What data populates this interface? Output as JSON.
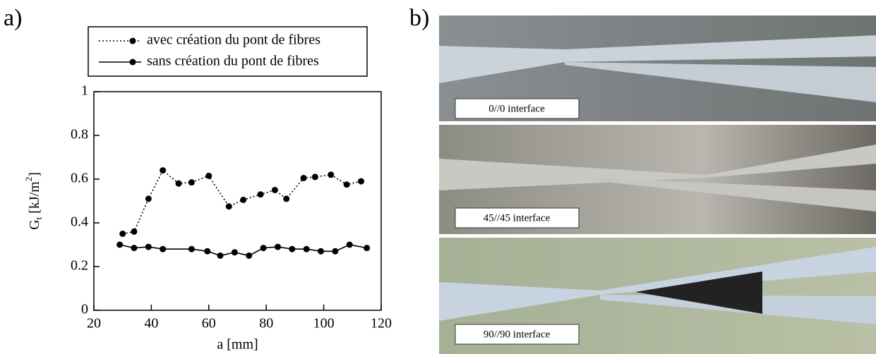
{
  "panel_labels": [
    "a)",
    "b)"
  ],
  "chart_data": {
    "type": "line",
    "xlabel": "a [mm]",
    "ylabel": [
      "G",
      "t",
      " [kJ/m",
      "2",
      "]"
    ],
    "xlim": [
      20,
      120
    ],
    "xticks": [
      20,
      40,
      60,
      80,
      100,
      120
    ],
    "ylim": [
      0,
      1
    ],
    "yticks": [
      0,
      0.2,
      0.4,
      0.6,
      0.8,
      1
    ],
    "series": [
      {
        "name": "avec création du pont de fibres",
        "color": "#000000",
        "line_style": "dotted",
        "x": [
          30,
          34,
          39,
          44,
          49.5,
          54,
          60,
          67,
          72,
          78,
          83,
          87,
          93,
          97,
          102.5,
          108,
          113
        ],
        "values": [
          0.35,
          0.36,
          0.51,
          0.64,
          0.58,
          0.585,
          0.615,
          0.475,
          0.505,
          0.53,
          0.55,
          0.51,
          0.605,
          0.61,
          0.62,
          0.575,
          0.59
        ]
      },
      {
        "name": "sans création du pont de fibres",
        "color": "#000000",
        "line_style": "solid",
        "x": [
          29,
          34,
          39,
          44,
          54,
          59.5,
          64,
          69,
          74,
          79,
          84,
          89,
          94,
          99,
          104,
          109,
          115
        ],
        "values": [
          0.3,
          0.285,
          0.29,
          0.28,
          0.28,
          0.27,
          0.25,
          0.265,
          0.25,
          0.285,
          0.29,
          0.28,
          0.28,
          0.27,
          0.27,
          0.3,
          0.285
        ]
      }
    ]
  },
  "photos": [
    {
      "label": "0//0 interface"
    },
    {
      "label": "45//45 interface"
    },
    {
      "label": "90//90 interface"
    }
  ]
}
